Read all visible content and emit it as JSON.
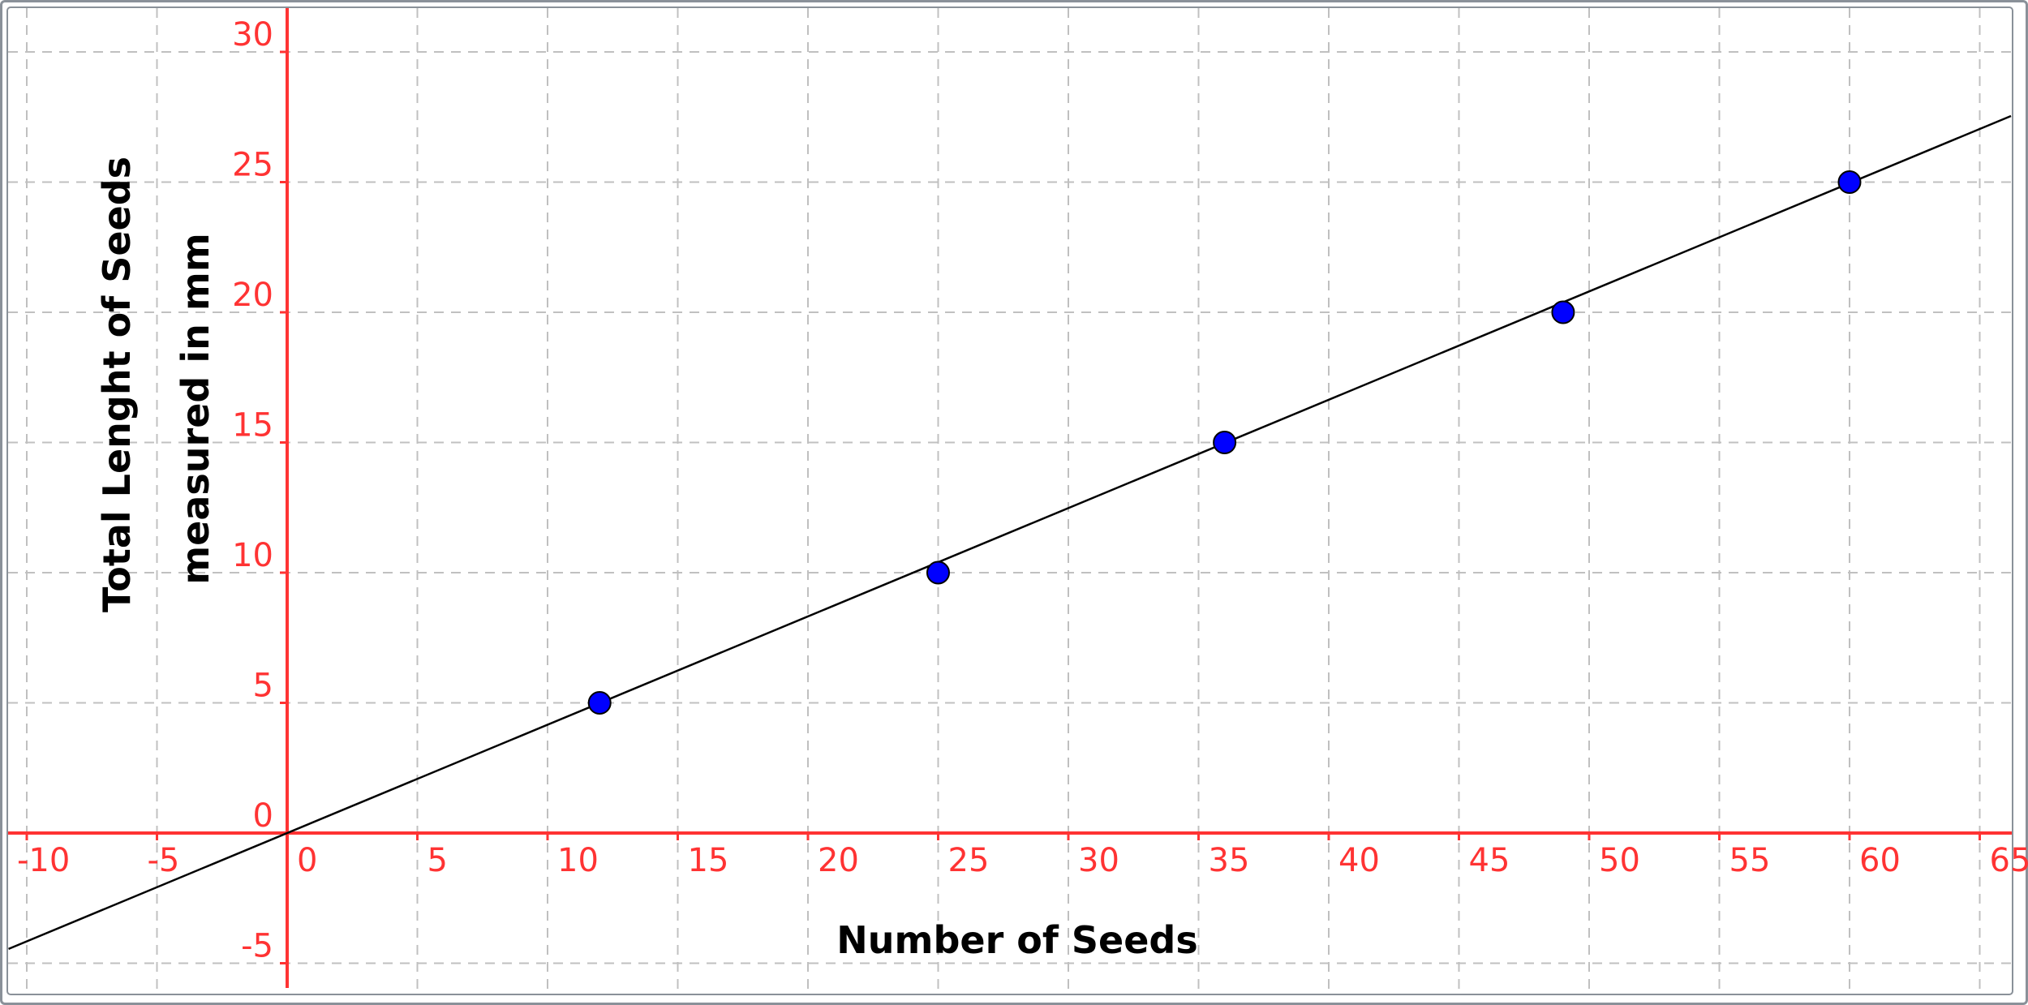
{
  "chart_data": {
    "type": "scatter",
    "title": "",
    "xlabel": "Number of Seeds",
    "ylabel": [
      "Total Lenght of Seeds",
      "measured in mm"
    ],
    "xlim": [
      -10.7,
      66.2
    ],
    "ylim": [
      -6.2,
      31.6
    ],
    "grid": true,
    "x_ticks": [
      -10,
      -5,
      0,
      5,
      10,
      15,
      20,
      25,
      30,
      35,
      40,
      45,
      50,
      55,
      60,
      65
    ],
    "y_ticks": [
      -5,
      0,
      5,
      10,
      15,
      20,
      25,
      30
    ],
    "x_tick_labels": [
      "-10",
      "-5",
      "0",
      "5",
      "10",
      "15",
      "20",
      "25",
      "30",
      "35",
      "40",
      "45",
      "50",
      "55",
      "60",
      "65"
    ],
    "y_tick_labels": [
      "-5",
      "0",
      "5",
      "10",
      "15",
      "20",
      "25",
      "30"
    ],
    "points": [
      {
        "x": 12,
        "y": 5
      },
      {
        "x": 25,
        "y": 10
      },
      {
        "x": 36,
        "y": 15
      },
      {
        "x": 49,
        "y": 20
      },
      {
        "x": 60,
        "y": 25
      }
    ],
    "trend_line": {
      "slope": 0.416,
      "intercept": 0
    },
    "colors": {
      "axes": "#ff3333",
      "tick_labels": "#ff3333",
      "grid": "#c0c0c0",
      "points_fill": "#0000ff",
      "points_stroke": "#000000",
      "trend_line": "#000000",
      "axis_titles": "#000000"
    }
  }
}
